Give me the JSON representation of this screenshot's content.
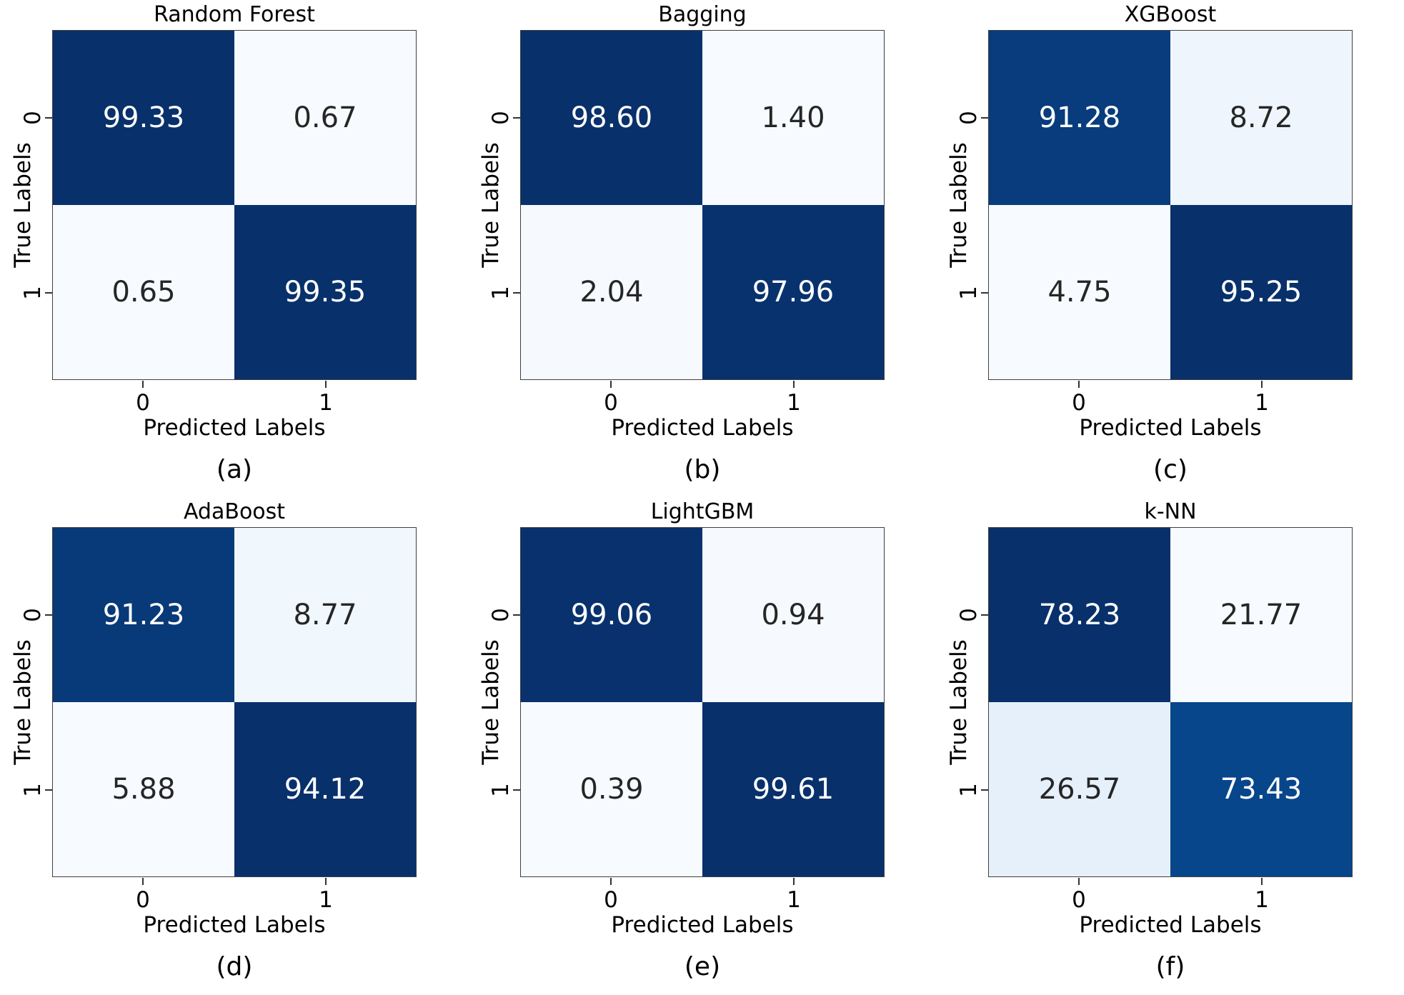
{
  "colors": {
    "colormap_min": "#f7fbff",
    "colormap_max": "#08306b",
    "annot_on_dark": "#ffffff",
    "annot_on_light": "#262626",
    "spine": "#3f3f3f"
  },
  "chart_data": [
    {
      "type": "heatmap",
      "title": "Random Forest",
      "caption": "(a)",
      "xlabel": "Predicted Labels",
      "ylabel": "True Labels",
      "x_ticks": [
        "0",
        "1"
      ],
      "y_ticks": [
        "0",
        "1"
      ],
      "colormap": "Blues",
      "values": [
        [
          99.33,
          0.67
        ],
        [
          0.65,
          99.35
        ]
      ],
      "values_display": [
        [
          "99.33",
          "0.67"
        ],
        [
          "0.65",
          "99.35"
        ]
      ]
    },
    {
      "type": "heatmap",
      "title": "Bagging",
      "caption": "(b)",
      "xlabel": "Predicted Labels",
      "ylabel": "True Labels",
      "x_ticks": [
        "0",
        "1"
      ],
      "y_ticks": [
        "0",
        "1"
      ],
      "colormap": "Blues",
      "values": [
        [
          98.6,
          1.4
        ],
        [
          2.04,
          97.96
        ]
      ],
      "values_display": [
        [
          "98.60",
          "1.40"
        ],
        [
          "2.04",
          "97.96"
        ]
      ]
    },
    {
      "type": "heatmap",
      "title": "XGBoost",
      "caption": "(c)",
      "xlabel": "Predicted Labels",
      "ylabel": "True Labels",
      "x_ticks": [
        "0",
        "1"
      ],
      "y_ticks": [
        "0",
        "1"
      ],
      "colormap": "Blues",
      "values": [
        [
          91.28,
          8.72
        ],
        [
          4.75,
          95.25
        ]
      ],
      "values_display": [
        [
          "91.28",
          "8.72"
        ],
        [
          "4.75",
          "95.25"
        ]
      ]
    },
    {
      "type": "heatmap",
      "title": "AdaBoost",
      "caption": "(d)",
      "xlabel": "Predicted Labels",
      "ylabel": "True Labels",
      "x_ticks": [
        "0",
        "1"
      ],
      "y_ticks": [
        "0",
        "1"
      ],
      "colormap": "Blues",
      "values": [
        [
          91.23,
          8.77
        ],
        [
          5.88,
          94.12
        ]
      ],
      "values_display": [
        [
          "91.23",
          "8.77"
        ],
        [
          "5.88",
          "94.12"
        ]
      ]
    },
    {
      "type": "heatmap",
      "title": "LightGBM",
      "caption": "(e)",
      "xlabel": "Predicted Labels",
      "ylabel": "True Labels",
      "x_ticks": [
        "0",
        "1"
      ],
      "y_ticks": [
        "0",
        "1"
      ],
      "colormap": "Blues",
      "values": [
        [
          99.06,
          0.94
        ],
        [
          0.39,
          99.61
        ]
      ],
      "values_display": [
        [
          "99.06",
          "0.94"
        ],
        [
          "0.39",
          "99.61"
        ]
      ]
    },
    {
      "type": "heatmap",
      "title": "k-NN",
      "caption": "(f)",
      "xlabel": "Predicted Labels",
      "ylabel": "True Labels",
      "x_ticks": [
        "0",
        "1"
      ],
      "y_ticks": [
        "0",
        "1"
      ],
      "colormap": "Blues",
      "values": [
        [
          78.23,
          21.77
        ],
        [
          26.57,
          73.43
        ]
      ],
      "values_display": [
        [
          "78.23",
          "21.77"
        ],
        [
          "26.57",
          "73.43"
        ]
      ]
    }
  ]
}
